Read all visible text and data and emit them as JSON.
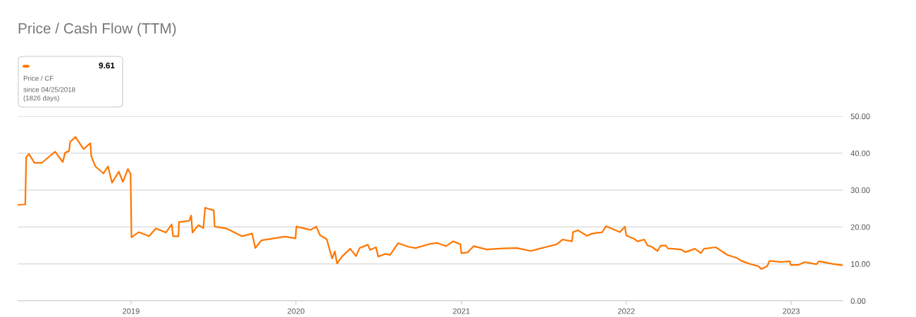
{
  "chart_data": {
    "type": "line",
    "title": "Price / Cash Flow (TTM)",
    "annotations": [
      "9.61",
      "Price / CF",
      "since 04/25/2018",
      "(1826 days)"
    ],
    "xlim": [
      "2018-04-25",
      "2023-04-25"
    ],
    "xticks": [
      {
        "value": "2019-01-01",
        "label": "2019"
      },
      {
        "value": "2020-01-01",
        "label": "2020"
      },
      {
        "value": "2021-01-01",
        "label": "2021"
      },
      {
        "value": "2022-01-01",
        "label": "2022"
      },
      {
        "value": "2023-01-01",
        "label": "2023"
      }
    ],
    "ylim": [
      0,
      50
    ],
    "yticks": [
      {
        "value": 0,
        "label": "0.00"
      },
      {
        "value": 10,
        "label": "10.00"
      },
      {
        "value": 20,
        "label": "20.00"
      },
      {
        "value": 30,
        "label": "30.00"
      },
      {
        "value": 40,
        "label": "40.00"
      },
      {
        "value": 50,
        "label": "50.00"
      }
    ],
    "grid": "y",
    "marker": "none",
    "line_style": "solid",
    "series": [
      {
        "color": "#ff7700",
        "x": [
          "2018-04-25",
          "2018-05-12",
          "2018-05-14",
          "2018-05-20",
          "2018-06-01",
          "2018-06-18",
          "2018-07-08",
          "2018-07-17",
          "2018-08-03",
          "2018-08-08",
          "2018-08-17",
          "2018-08-19",
          "2018-08-31",
          "2018-09-18",
          "2018-10-03",
          "2018-10-05",
          "2018-10-14",
          "2018-11-01",
          "2018-11-11",
          "2018-11-20",
          "2018-12-05",
          "2018-12-14",
          "2018-12-25",
          "2018-12-31",
          "2019-01-02",
          "2019-01-18",
          "2019-02-10",
          "2019-02-25",
          "2019-03-19",
          "2019-04-01",
          "2019-04-04",
          "2019-04-16",
          "2019-04-17",
          "2019-05-10",
          "2019-05-14",
          "2019-05-17",
          "2019-05-30",
          "2019-06-10",
          "2019-06-14",
          "2019-07-03",
          "2019-07-05",
          "2019-07-31",
          "2019-09-03",
          "2019-09-26",
          "2019-10-03",
          "2019-10-17",
          "2019-12-08",
          "2019-12-31",
          "2020-01-02",
          "2020-02-02",
          "2020-02-15",
          "2020-02-23",
          "2020-03-09",
          "2020-03-21",
          "2020-03-27",
          "2020-04-01",
          "2020-04-12",
          "2020-04-30",
          "2020-05-13",
          "2020-05-21",
          "2020-06-08",
          "2020-06-13",
          "2020-06-26",
          "2020-07-01",
          "2020-07-17",
          "2020-07-27",
          "2020-08-14",
          "2020-09-07",
          "2020-09-22",
          "2020-10-23",
          "2020-11-08",
          "2020-11-28",
          "2020-12-14",
          "2020-12-30",
          "2021-01-01",
          "2021-01-15",
          "2021-01-28",
          "2021-02-26",
          "2021-04-03",
          "2021-05-04",
          "2021-06-04",
          "2021-07-05",
          "2021-07-31",
          "2021-08-13",
          "2021-09-03",
          "2021-09-05",
          "2021-09-16",
          "2021-10-06",
          "2021-10-17",
          "2021-11-09",
          "2021-11-17",
          "2021-11-27",
          "2021-12-18",
          "2021-12-29",
          "2022-01-01",
          "2022-01-18",
          "2022-01-26",
          "2022-02-10",
          "2022-02-17",
          "2022-02-27",
          "2022-03-11",
          "2022-03-18",
          "2022-03-29",
          "2022-04-03",
          "2022-05-02",
          "2022-05-12",
          "2022-06-02",
          "2022-06-15",
          "2022-06-22",
          "2022-07-18",
          "2022-08-13",
          "2022-09-03",
          "2022-09-13",
          "2022-10-04",
          "2022-10-20",
          "2022-10-27",
          "2022-11-09",
          "2022-11-14",
          "2022-12-10",
          "2022-12-29",
          "2022-12-31",
          "2023-01-16",
          "2023-01-31",
          "2023-02-26",
          "2023-03-03",
          "2023-04-03",
          "2023-04-24"
        ],
        "values": [
          26.0,
          26.1,
          38.9,
          39.8,
          37.4,
          37.4,
          39.5,
          40.4,
          37.6,
          40.1,
          40.6,
          43.0,
          44.4,
          41.1,
          42.7,
          39.2,
          36.4,
          34.5,
          36.4,
          32.0,
          35.0,
          32.2,
          35.7,
          34.4,
          17.2,
          18.6,
          17.5,
          19.6,
          18.5,
          20.7,
          17.5,
          17.5,
          21.3,
          21.7,
          23.1,
          18.5,
          20.5,
          19.7,
          25.2,
          24.5,
          20.1,
          19.6,
          17.5,
          18.2,
          14.3,
          16.4,
          17.4,
          16.9,
          20.1,
          19.2,
          20.1,
          17.8,
          16.7,
          11.5,
          13.4,
          10.1,
          12.0,
          14.1,
          12.1,
          14.3,
          15.2,
          13.8,
          14.5,
          12.0,
          12.7,
          12.4,
          15.6,
          14.6,
          14.3,
          15.4,
          15.7,
          14.8,
          16.1,
          15.3,
          12.9,
          13.1,
          14.8,
          13.9,
          14.2,
          14.3,
          13.5,
          14.5,
          15.3,
          16.6,
          16.1,
          18.6,
          19.1,
          17.6,
          18.2,
          18.6,
          20.2,
          19.7,
          18.6,
          20.1,
          17.7,
          16.8,
          16.1,
          16.6,
          15.0,
          14.6,
          13.5,
          14.9,
          15.0,
          14.2,
          13.9,
          13.2,
          14.1,
          12.9,
          14.1,
          14.5,
          12.4,
          11.6,
          10.8,
          9.9,
          9.4,
          8.6,
          9.4,
          10.8,
          10.5,
          10.7,
          9.7,
          9.7,
          10.5,
          9.9,
          10.7,
          10.0,
          9.61
        ]
      }
    ]
  }
}
